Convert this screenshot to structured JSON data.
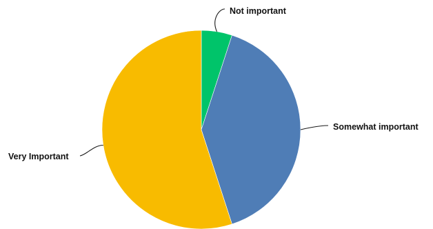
{
  "chart_data": {
    "type": "pie",
    "title": "",
    "slices": [
      {
        "label": "Not important",
        "value": 5,
        "color": "#00C46A"
      },
      {
        "label": "Somewhat important",
        "value": 40,
        "color": "#4F7DB6"
      },
      {
        "label": "Very Important",
        "value": 55,
        "color": "#F8BB00"
      }
    ],
    "start_angle": "12 o'clock",
    "direction": "clockwise",
    "legend": "none",
    "labels": "outside with leader lines"
  }
}
